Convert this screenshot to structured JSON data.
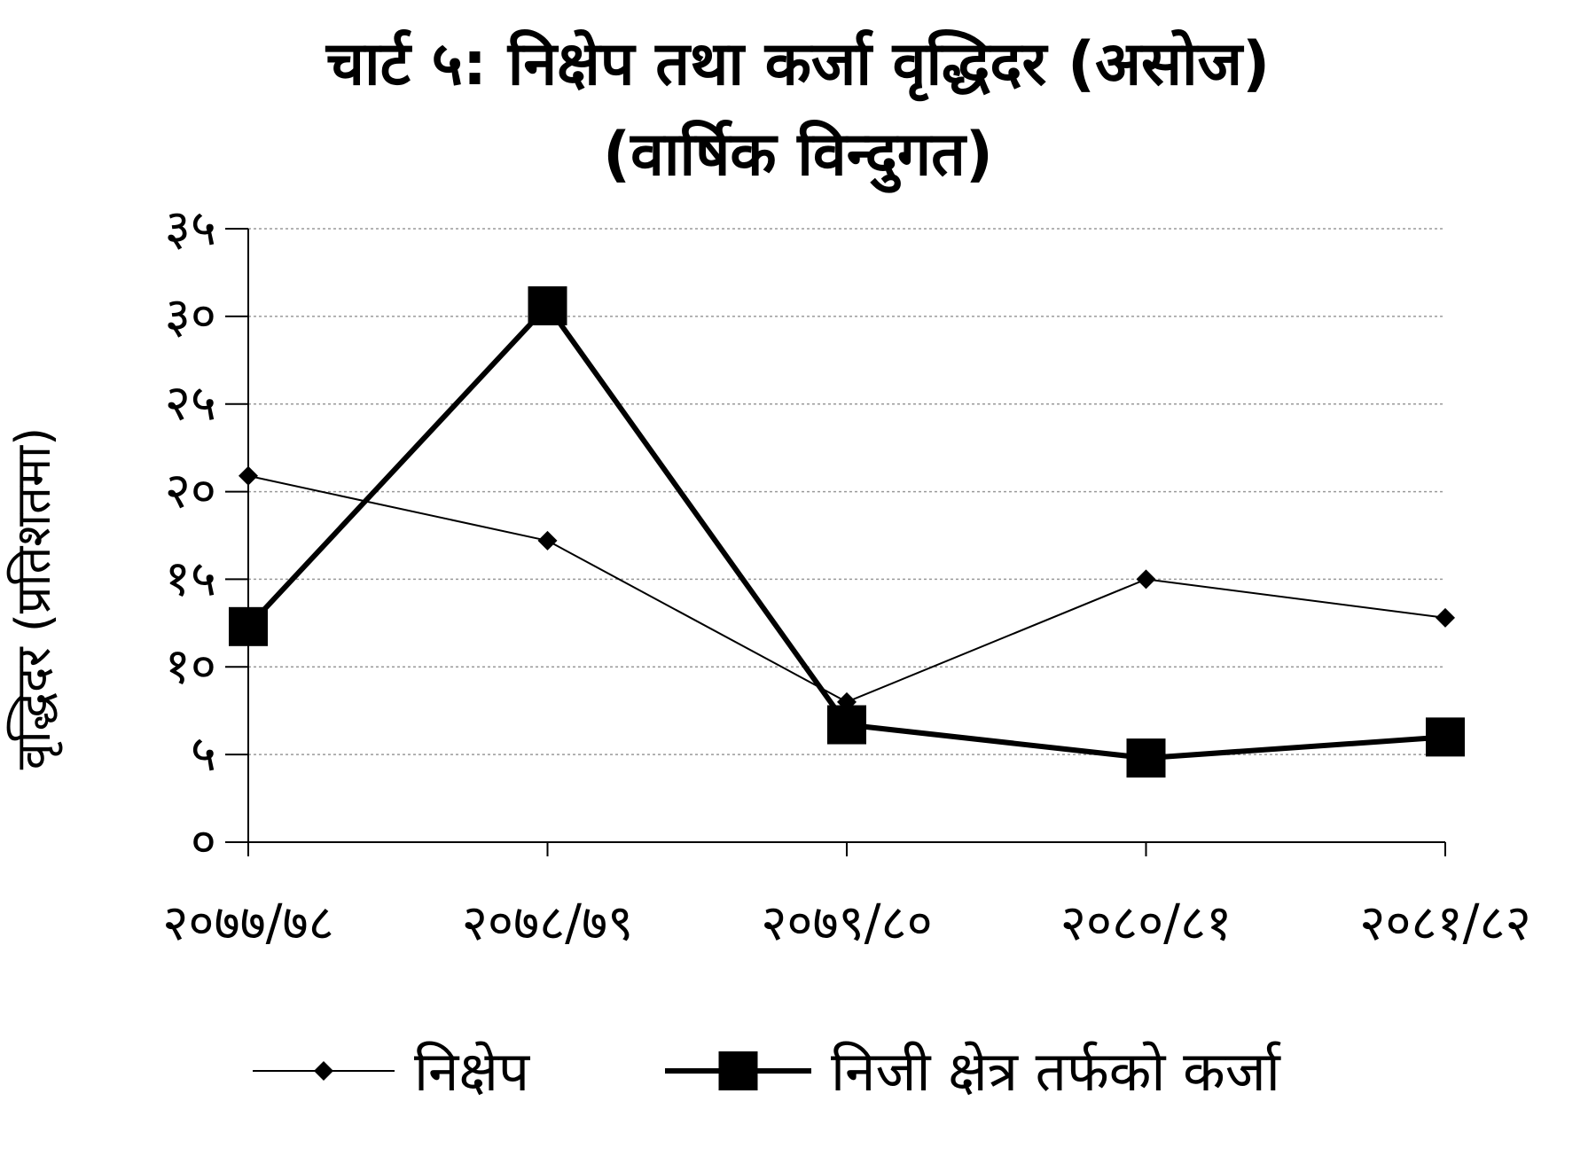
{
  "chart_data": {
    "type": "line",
    "title": "चार्ट ५: निक्षेप तथा कर्जा वृद्धिदर (असोज)",
    "subtitle": "(वार्षिक विन्दुगत)",
    "xlabel": "",
    "ylabel": "वृद्धिदर (प्रतिशतमा)",
    "categories": [
      "२०७७/७८",
      "२०७८/७९",
      "२०७९/८०",
      "२०८०/८१",
      "२०८१/८२"
    ],
    "y_ticks": [
      "०",
      "५",
      "१०",
      "१५",
      "२०",
      "२५",
      "३०",
      "३५"
    ],
    "ylim": [
      0,
      35
    ],
    "grid": true,
    "legend_position": "bottom",
    "series": [
      {
        "name": "निक्षेप",
        "values": [
          20.9,
          17.2,
          8.0,
          15.0,
          12.8
        ],
        "marker": "diamond",
        "line": "thin"
      },
      {
        "name": "निजी क्षेत्र तर्फको कर्जा",
        "values": [
          12.3,
          30.6,
          6.7,
          4.8,
          6.0
        ],
        "marker": "square",
        "line": "thick"
      }
    ]
  }
}
